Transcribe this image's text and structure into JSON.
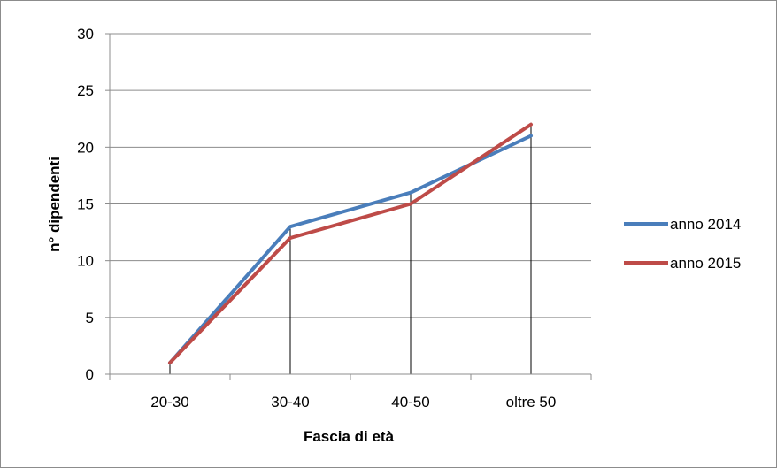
{
  "chart_data": {
    "type": "line",
    "title": "",
    "xlabel": "Fascia di età",
    "ylabel": "n° dipendenti",
    "categories": [
      "20-30",
      "30-40",
      "40-50",
      "oltre 50"
    ],
    "ylim": [
      0,
      30
    ],
    "yticks": [
      0,
      5,
      10,
      15,
      20,
      25,
      30
    ],
    "grid": true,
    "legend": "right",
    "series": [
      {
        "name": "anno 2014",
        "values": [
          1,
          13,
          16,
          21
        ],
        "color": "#4a7ebb"
      },
      {
        "name": "anno 2015",
        "values": [
          1,
          12,
          15,
          22
        ],
        "color": "#be4b48"
      }
    ]
  }
}
